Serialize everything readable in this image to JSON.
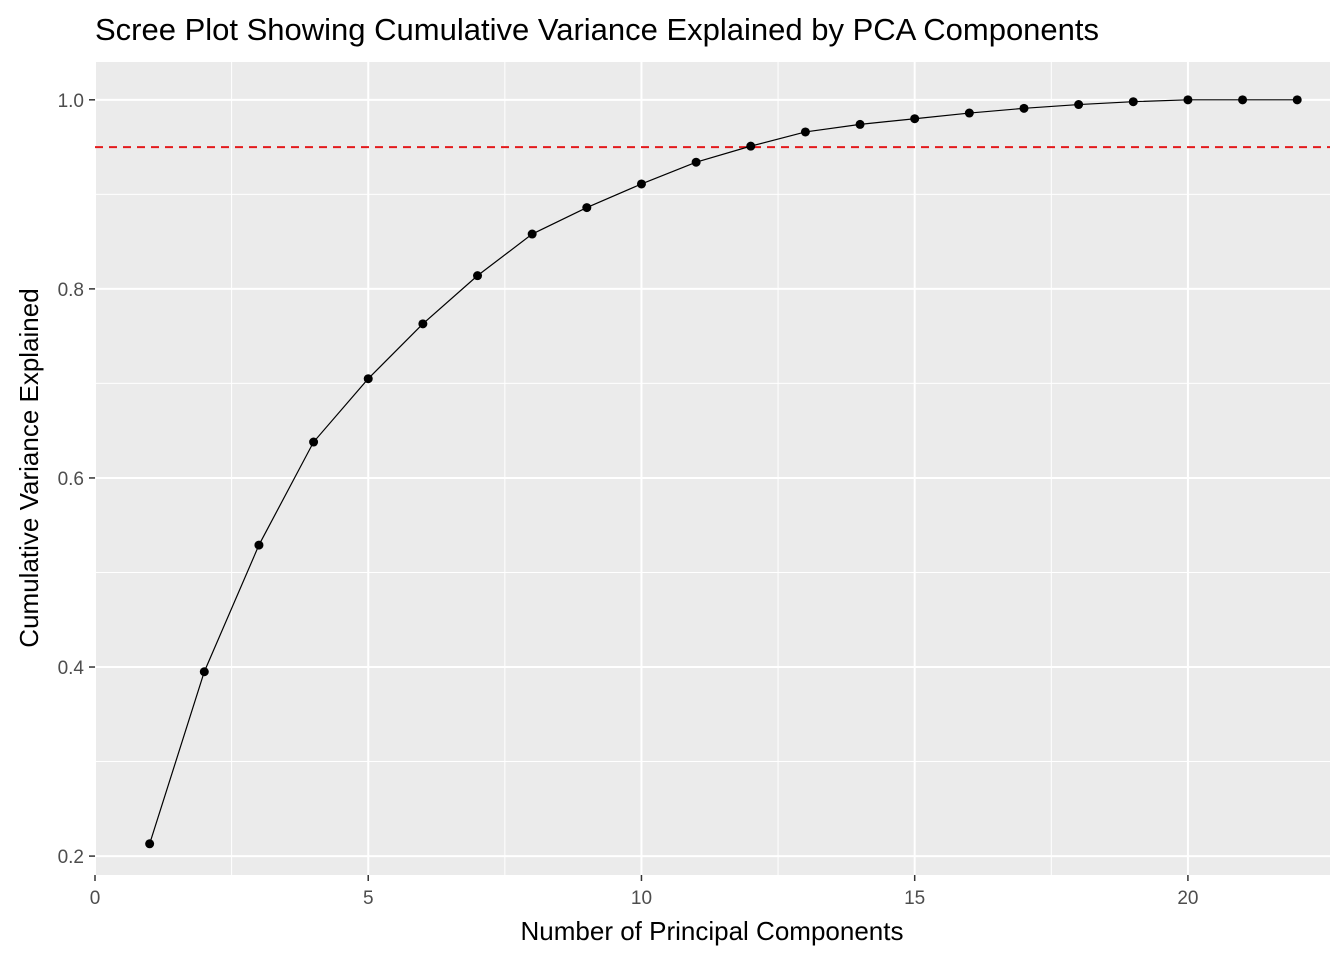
{
  "chart_data": {
    "type": "line",
    "title": "Scree Plot Showing Cumulative Variance Explained by PCA Components",
    "xlabel": "Number of Principal Components",
    "ylabel": "Cumulative Variance Explained",
    "xlim": [
      0,
      22.6
    ],
    "ylim": [
      0.18,
      1.04
    ],
    "x_ticks": [
      0,
      5,
      10,
      15,
      20
    ],
    "x_tick_labels": [
      "0",
      "5",
      "10",
      "15",
      "20"
    ],
    "y_ticks": [
      0.2,
      0.4,
      0.6,
      0.8,
      1.0
    ],
    "y_tick_labels": [
      "0.2",
      "0.4",
      "0.6",
      "0.8",
      "1.0"
    ],
    "grid": true,
    "reference_line": {
      "orientation": "horizontal",
      "y": 0.95,
      "style": "dashed",
      "color": "#e41a1c"
    },
    "series": [
      {
        "x": [
          1,
          2,
          3,
          4,
          5,
          6,
          7,
          8,
          9,
          10,
          11,
          12,
          13,
          14,
          15,
          16,
          17,
          18,
          19,
          20,
          21,
          22
        ],
        "values": [
          0.213,
          0.395,
          0.529,
          0.638,
          0.705,
          0.763,
          0.814,
          0.858,
          0.886,
          0.911,
          0.934,
          0.951,
          0.966,
          0.974,
          0.98,
          0.986,
          0.991,
          0.995,
          0.998,
          1.0,
          1.0,
          1.0
        ],
        "color": "#000000"
      }
    ]
  },
  "colors": {
    "panel_background": "#ebebeb",
    "grid_major": "#ffffff",
    "line": "#000000",
    "reference_line": "#e41a1c"
  }
}
